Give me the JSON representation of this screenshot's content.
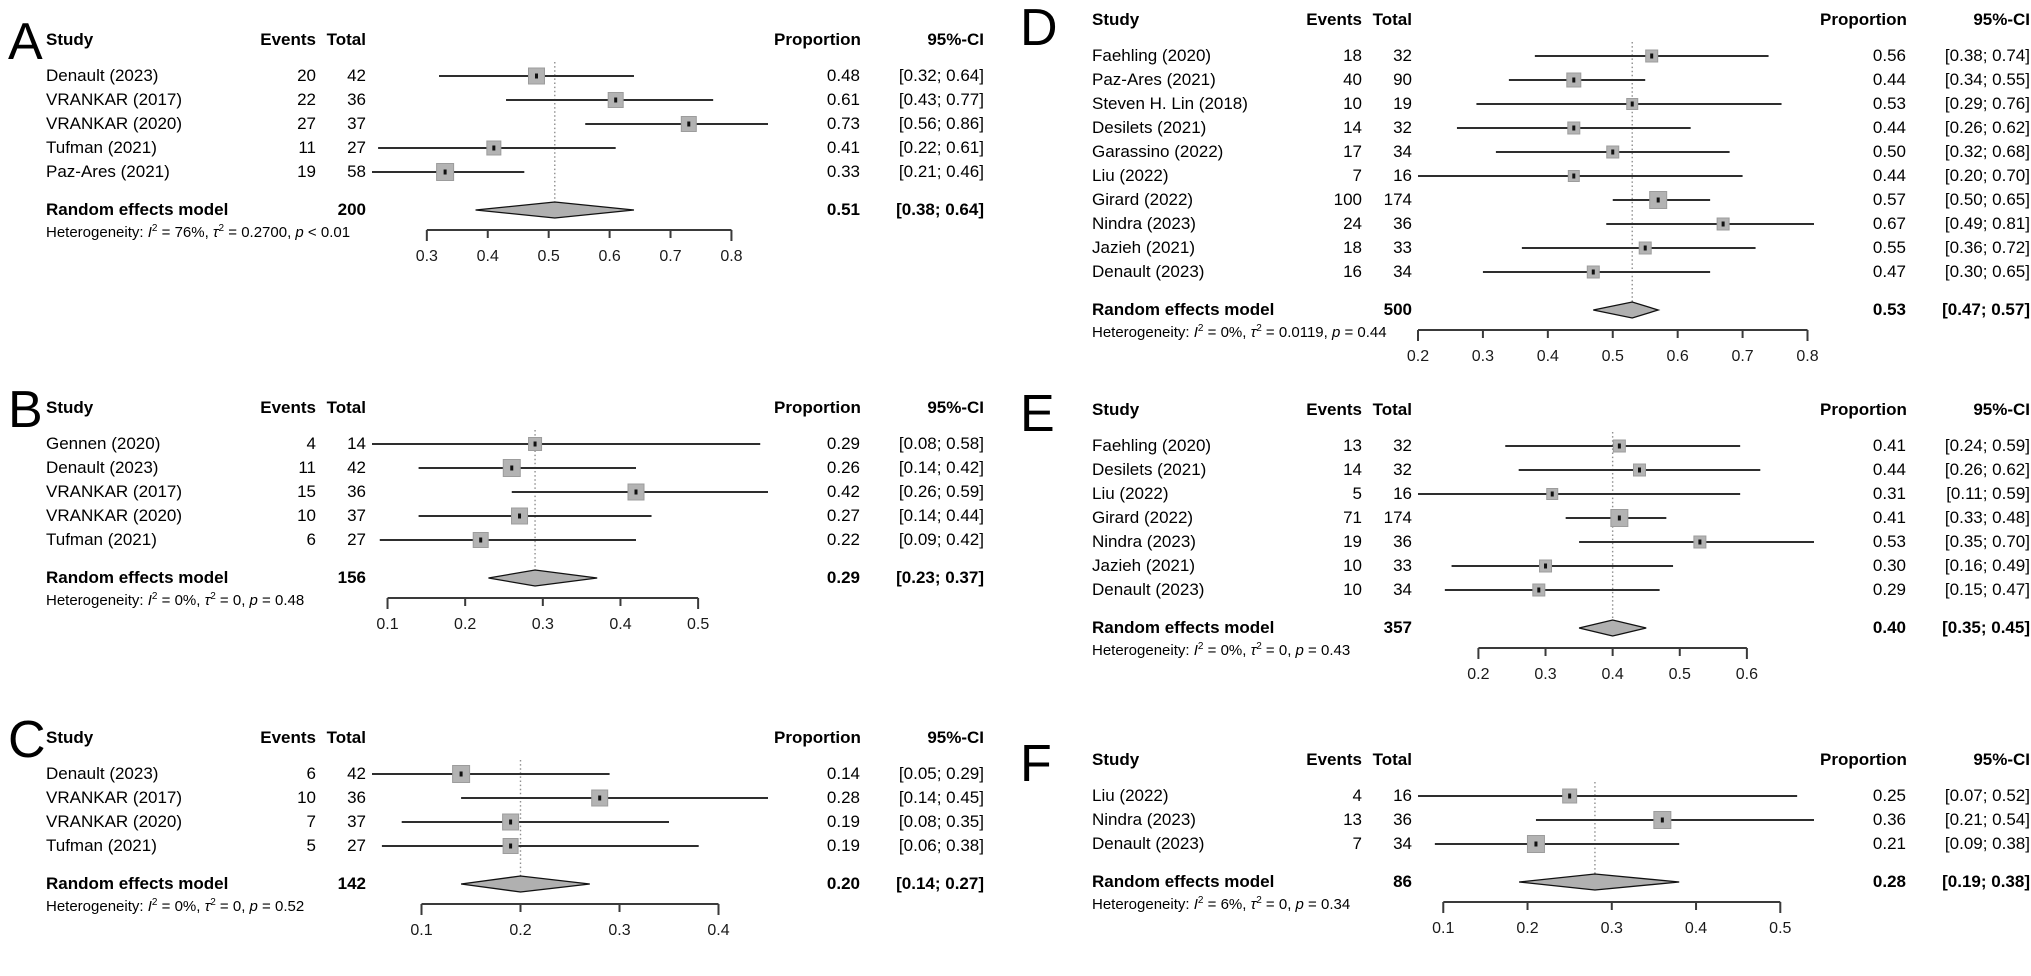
{
  "colors": {
    "square": "#b3b3b3",
    "square_border": "#9c9c9c",
    "point_dot": "#111111",
    "ci_line": "#2e2e2e",
    "diamond_fill": "#b0b0b0",
    "diamond_stroke": "#111111",
    "dotted_line": "#8f8f8f",
    "axis_line": "#3a3a3a",
    "text": "#000000"
  },
  "chart_data": [
    {
      "type": "forest",
      "panel": "A",
      "columns": {
        "study": "Study",
        "events": "Events",
        "total": "Total",
        "proportion": "Proportion",
        "ci": "95%-CI"
      },
      "studies": [
        {
          "study": "Denault (2023)",
          "events": 20,
          "total": 42,
          "proportion": "0.48",
          "ci": "[0.32; 0.64]",
          "pt": 0.48,
          "lo": 0.32,
          "hi": 0.64
        },
        {
          "study": "VRANKAR (2017)",
          "events": 22,
          "total": 36,
          "proportion": "0.61",
          "ci": "[0.43; 0.77]",
          "pt": 0.61,
          "lo": 0.43,
          "hi": 0.77
        },
        {
          "study": "VRANKAR (2020)",
          "events": 27,
          "total": 37,
          "proportion": "0.73",
          "ci": "[0.56; 0.86]",
          "pt": 0.73,
          "lo": 0.56,
          "hi": 0.86
        },
        {
          "study": "Tufman (2021)",
          "events": 11,
          "total": 27,
          "proportion": "0.41",
          "ci": "[0.22; 0.61]",
          "pt": 0.41,
          "lo": 0.22,
          "hi": 0.61
        },
        {
          "study": "Paz-Ares (2021)",
          "events": 19,
          "total": 58,
          "proportion": "0.33",
          "ci": "[0.21; 0.46]",
          "pt": 0.33,
          "lo": 0.21,
          "hi": 0.46
        }
      ],
      "summary": {
        "label": "Random effects model",
        "total": 200,
        "proportion": "0.51",
        "ci": "[0.38; 0.64]",
        "pt": 0.51,
        "lo": 0.38,
        "hi": 0.64
      },
      "heterogeneity": {
        "prefix": "Heterogeneity: ",
        "terms": [
          {
            "sym": "I",
            "sup": "2",
            "tail": " = 76%, "
          },
          {
            "sym": "τ",
            "sup": "2",
            "tail": " = 0.2700, "
          },
          {
            "sym": "p",
            "sup": "",
            "tail": " < 0.01"
          }
        ]
      },
      "axis": {
        "ticks": [
          0.3,
          0.4,
          0.5,
          0.6,
          0.7,
          0.8
        ],
        "tick_labels": [
          "0.3",
          "0.4",
          "0.5",
          "0.6",
          "0.7",
          "0.8"
        ]
      }
    },
    {
      "type": "forest",
      "panel": "B",
      "columns": {
        "study": "Study",
        "events": "Events",
        "total": "Total",
        "proportion": "Proportion",
        "ci": "95%-CI"
      },
      "studies": [
        {
          "study": "Gennen (2020)",
          "events": 4,
          "total": 14,
          "proportion": "0.29",
          "ci": "[0.08; 0.58]",
          "pt": 0.29,
          "lo": 0.08,
          "hi": 0.58
        },
        {
          "study": "Denault (2023)",
          "events": 11,
          "total": 42,
          "proportion": "0.26",
          "ci": "[0.14; 0.42]",
          "pt": 0.26,
          "lo": 0.14,
          "hi": 0.42
        },
        {
          "study": "VRANKAR (2017)",
          "events": 15,
          "total": 36,
          "proportion": "0.42",
          "ci": "[0.26; 0.59]",
          "pt": 0.42,
          "lo": 0.26,
          "hi": 0.59
        },
        {
          "study": "VRANKAR (2020)",
          "events": 10,
          "total": 37,
          "proportion": "0.27",
          "ci": "[0.14; 0.44]",
          "pt": 0.27,
          "lo": 0.14,
          "hi": 0.44
        },
        {
          "study": "Tufman (2021)",
          "events": 6,
          "total": 27,
          "proportion": "0.22",
          "ci": "[0.09; 0.42]",
          "pt": 0.22,
          "lo": 0.09,
          "hi": 0.42
        }
      ],
      "summary": {
        "label": "Random effects model",
        "total": 156,
        "proportion": "0.29",
        "ci": "[0.23; 0.37]",
        "pt": 0.29,
        "lo": 0.23,
        "hi": 0.37
      },
      "heterogeneity": {
        "prefix": "Heterogeneity: ",
        "terms": [
          {
            "sym": "I",
            "sup": "2",
            "tail": " = 0%, "
          },
          {
            "sym": "τ",
            "sup": "2",
            "tail": " = 0, "
          },
          {
            "sym": "p",
            "sup": "",
            "tail": " = 0.48"
          }
        ]
      },
      "axis": {
        "ticks": [
          0.1,
          0.2,
          0.3,
          0.4,
          0.5
        ],
        "tick_labels": [
          "0.1",
          "0.2",
          "0.3",
          "0.4",
          "0.5"
        ]
      }
    },
    {
      "type": "forest",
      "panel": "C",
      "columns": {
        "study": "Study",
        "events": "Events",
        "total": "Total",
        "proportion": "Proportion",
        "ci": "95%-CI"
      },
      "studies": [
        {
          "study": "Denault (2023)",
          "events": 6,
          "total": 42,
          "proportion": "0.14",
          "ci": "[0.05; 0.29]",
          "pt": 0.14,
          "lo": 0.05,
          "hi": 0.29
        },
        {
          "study": "VRANKAR (2017)",
          "events": 10,
          "total": 36,
          "proportion": "0.28",
          "ci": "[0.14; 0.45]",
          "pt": 0.28,
          "lo": 0.14,
          "hi": 0.45
        },
        {
          "study": "VRANKAR (2020)",
          "events": 7,
          "total": 37,
          "proportion": "0.19",
          "ci": "[0.08; 0.35]",
          "pt": 0.19,
          "lo": 0.08,
          "hi": 0.35
        },
        {
          "study": "Tufman (2021)",
          "events": 5,
          "total": 27,
          "proportion": "0.19",
          "ci": "[0.06; 0.38]",
          "pt": 0.19,
          "lo": 0.06,
          "hi": 0.38
        }
      ],
      "summary": {
        "label": "Random effects model",
        "total": 142,
        "proportion": "0.20",
        "ci": "[0.14; 0.27]",
        "pt": 0.2,
        "lo": 0.14,
        "hi": 0.27
      },
      "heterogeneity": {
        "prefix": "Heterogeneity: ",
        "terms": [
          {
            "sym": "I",
            "sup": "2",
            "tail": " = 0%, "
          },
          {
            "sym": "τ",
            "sup": "2",
            "tail": " = 0, "
          },
          {
            "sym": "p",
            "sup": "",
            "tail": " = 0.52"
          }
        ]
      },
      "axis": {
        "ticks": [
          0.1,
          0.2,
          0.3,
          0.4
        ],
        "tick_labels": [
          "0.1",
          "0.2",
          "0.3",
          "0.4"
        ]
      }
    },
    {
      "type": "forest",
      "panel": "D",
      "columns": {
        "study": "Study",
        "events": "Events",
        "total": "Total",
        "proportion": "Proportion",
        "ci": "95%-CI"
      },
      "studies": [
        {
          "study": "Faehling (2020)",
          "events": 18,
          "total": 32,
          "proportion": "0.56",
          "ci": "[0.38; 0.74]",
          "pt": 0.56,
          "lo": 0.38,
          "hi": 0.74
        },
        {
          "study": "Paz-Ares (2021)",
          "events": 40,
          "total": 90,
          "proportion": "0.44",
          "ci": "[0.34; 0.55]",
          "pt": 0.44,
          "lo": 0.34,
          "hi": 0.55
        },
        {
          "study": "Steven H. Lin (2018)",
          "events": 10,
          "total": 19,
          "proportion": "0.53",
          "ci": "[0.29; 0.76]",
          "pt": 0.53,
          "lo": 0.29,
          "hi": 0.76
        },
        {
          "study": "Desilets (2021)",
          "events": 14,
          "total": 32,
          "proportion": "0.44",
          "ci": "[0.26; 0.62]",
          "pt": 0.44,
          "lo": 0.26,
          "hi": 0.62
        },
        {
          "study": "Garassino (2022)",
          "events": 17,
          "total": 34,
          "proportion": "0.50",
          "ci": "[0.32; 0.68]",
          "pt": 0.5,
          "lo": 0.32,
          "hi": 0.68
        },
        {
          "study": "Liu (2022)",
          "events": 7,
          "total": 16,
          "proportion": "0.44",
          "ci": "[0.20; 0.70]",
          "pt": 0.44,
          "lo": 0.2,
          "hi": 0.7
        },
        {
          "study": "Girard (2022)",
          "events": 100,
          "total": 174,
          "proportion": "0.57",
          "ci": "[0.50; 0.65]",
          "pt": 0.57,
          "lo": 0.5,
          "hi": 0.65
        },
        {
          "study": "Nindra (2023)",
          "events": 24,
          "total": 36,
          "proportion": "0.67",
          "ci": "[0.49; 0.81]",
          "pt": 0.67,
          "lo": 0.49,
          "hi": 0.81
        },
        {
          "study": "Jazieh (2021)",
          "events": 18,
          "total": 33,
          "proportion": "0.55",
          "ci": "[0.36; 0.72]",
          "pt": 0.55,
          "lo": 0.36,
          "hi": 0.72
        },
        {
          "study": "Denault (2023)",
          "events": 16,
          "total": 34,
          "proportion": "0.47",
          "ci": "[0.30; 0.65]",
          "pt": 0.47,
          "lo": 0.3,
          "hi": 0.65
        }
      ],
      "summary": {
        "label": "Random effects model",
        "total": 500,
        "proportion": "0.53",
        "ci": "[0.47; 0.57]",
        "pt": 0.53,
        "lo": 0.47,
        "hi": 0.57
      },
      "heterogeneity": {
        "prefix": "Heterogeneity: ",
        "terms": [
          {
            "sym": "I",
            "sup": "2",
            "tail": " = 0%, "
          },
          {
            "sym": "τ",
            "sup": "2",
            "tail": " = 0.0119, "
          },
          {
            "sym": "p",
            "sup": "",
            "tail": " = 0.44"
          }
        ]
      },
      "axis": {
        "ticks": [
          0.2,
          0.3,
          0.4,
          0.5,
          0.6,
          0.7,
          0.8
        ],
        "tick_labels": [
          "0.2",
          "0.3",
          "0.4",
          "0.5",
          "0.6",
          "0.7",
          "0.8"
        ]
      }
    },
    {
      "type": "forest",
      "panel": "E",
      "columns": {
        "study": "Study",
        "events": "Events",
        "total": "Total",
        "proportion": "Proportion",
        "ci": "95%-CI"
      },
      "studies": [
        {
          "study": "Faehling (2020)",
          "events": 13,
          "total": 32,
          "proportion": "0.41",
          "ci": "[0.24; 0.59]",
          "pt": 0.41,
          "lo": 0.24,
          "hi": 0.59
        },
        {
          "study": "Desilets (2021)",
          "events": 14,
          "total": 32,
          "proportion": "0.44",
          "ci": "[0.26; 0.62]",
          "pt": 0.44,
          "lo": 0.26,
          "hi": 0.62
        },
        {
          "study": "Liu (2022)",
          "events": 5,
          "total": 16,
          "proportion": "0.31",
          "ci": "[0.11; 0.59]",
          "pt": 0.31,
          "lo": 0.11,
          "hi": 0.59
        },
        {
          "study": "Girard (2022)",
          "events": 71,
          "total": 174,
          "proportion": "0.41",
          "ci": "[0.33; 0.48]",
          "pt": 0.41,
          "lo": 0.33,
          "hi": 0.48
        },
        {
          "study": "Nindra (2023)",
          "events": 19,
          "total": 36,
          "proportion": "0.53",
          "ci": "[0.35; 0.70]",
          "pt": 0.53,
          "lo": 0.35,
          "hi": 0.7
        },
        {
          "study": "Jazieh (2021)",
          "events": 10,
          "total": 33,
          "proportion": "0.30",
          "ci": "[0.16; 0.49]",
          "pt": 0.3,
          "lo": 0.16,
          "hi": 0.49
        },
        {
          "study": "Denault (2023)",
          "events": 10,
          "total": 34,
          "proportion": "0.29",
          "ci": "[0.15; 0.47]",
          "pt": 0.29,
          "lo": 0.15,
          "hi": 0.47
        }
      ],
      "summary": {
        "label": "Random effects model",
        "total": 357,
        "proportion": "0.40",
        "ci": "[0.35; 0.45]",
        "pt": 0.4,
        "lo": 0.35,
        "hi": 0.45
      },
      "heterogeneity": {
        "prefix": "Heterogeneity: ",
        "terms": [
          {
            "sym": "I",
            "sup": "2",
            "tail": " = 0%, "
          },
          {
            "sym": "τ",
            "sup": "2",
            "tail": " = 0, "
          },
          {
            "sym": "p",
            "sup": "",
            "tail": " = 0.43"
          }
        ]
      },
      "axis": {
        "ticks": [
          0.2,
          0.3,
          0.4,
          0.5,
          0.6
        ],
        "tick_labels": [
          "0.2",
          "0.3",
          "0.4",
          "0.5",
          "0.6"
        ]
      }
    },
    {
      "type": "forest",
      "panel": "F",
      "columns": {
        "study": "Study",
        "events": "Events",
        "total": "Total",
        "proportion": "Proportion",
        "ci": "95%-CI"
      },
      "studies": [
        {
          "study": "Liu (2022)",
          "events": 4,
          "total": 16,
          "proportion": "0.25",
          "ci": "[0.07; 0.52]",
          "pt": 0.25,
          "lo": 0.07,
          "hi": 0.52
        },
        {
          "study": "Nindra (2023)",
          "events": 13,
          "total": 36,
          "proportion": "0.36",
          "ci": "[0.21; 0.54]",
          "pt": 0.36,
          "lo": 0.21,
          "hi": 0.54
        },
        {
          "study": "Denault (2023)",
          "events": 7,
          "total": 34,
          "proportion": "0.21",
          "ci": "[0.09; 0.38]",
          "pt": 0.21,
          "lo": 0.09,
          "hi": 0.38
        }
      ],
      "summary": {
        "label": "Random effects model",
        "total": 86,
        "proportion": "0.28",
        "ci": "[0.19; 0.38]",
        "pt": 0.28,
        "lo": 0.19,
        "hi": 0.38
      },
      "heterogeneity": {
        "prefix": "Heterogeneity: ",
        "terms": [
          {
            "sym": "I",
            "sup": "2",
            "tail": " = 6%, "
          },
          {
            "sym": "τ",
            "sup": "2",
            "tail": " = 0, "
          },
          {
            "sym": "p",
            "sup": "",
            "tail": " = 0.34"
          }
        ]
      },
      "axis": {
        "ticks": [
          0.1,
          0.2,
          0.3,
          0.4,
          0.5
        ],
        "tick_labels": [
          "0.1",
          "0.2",
          "0.3",
          "0.4",
          "0.5"
        ]
      }
    }
  ]
}
